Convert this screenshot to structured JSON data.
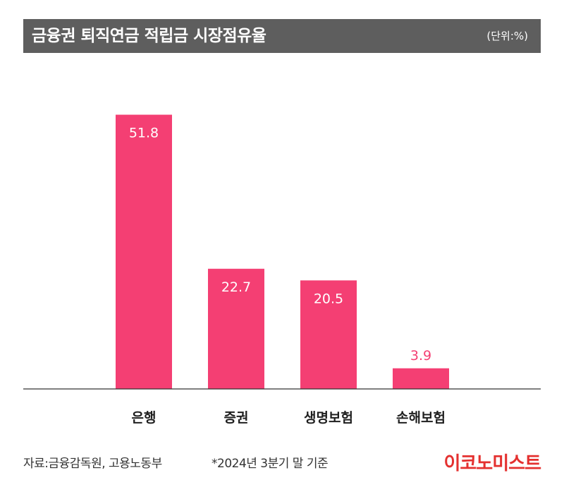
{
  "header": {
    "title": "금융권 퇴직연금 적립금 시장점유율",
    "unit": "(단위:%)"
  },
  "chart_data": {
    "type": "bar",
    "title": "금융권 퇴직연금 적립금 시장점유율",
    "unit": "(단위:%)",
    "categories": [
      "은행",
      "증권",
      "생명보험",
      "손해보험"
    ],
    "values": [
      51.8,
      22.7,
      20.5,
      3.9
    ],
    "value_labels": [
      "51.8",
      "22.7",
      "20.5",
      "3.9"
    ],
    "ylim": [
      0,
      60
    ],
    "grid": false,
    "legend": "none",
    "bar_color": "#f43f73"
  },
  "footer": {
    "source": "자료:금융감독원, 고용노동부",
    "note": "*2024년 3분기 말 기준",
    "brand": "이코노미스트"
  },
  "colors": {
    "title_bg": "#5e5e5e",
    "bar": "#f43f73",
    "label_inside": "#ffffff",
    "label_outside": "#f43f73",
    "brand": "#e4302f"
  }
}
